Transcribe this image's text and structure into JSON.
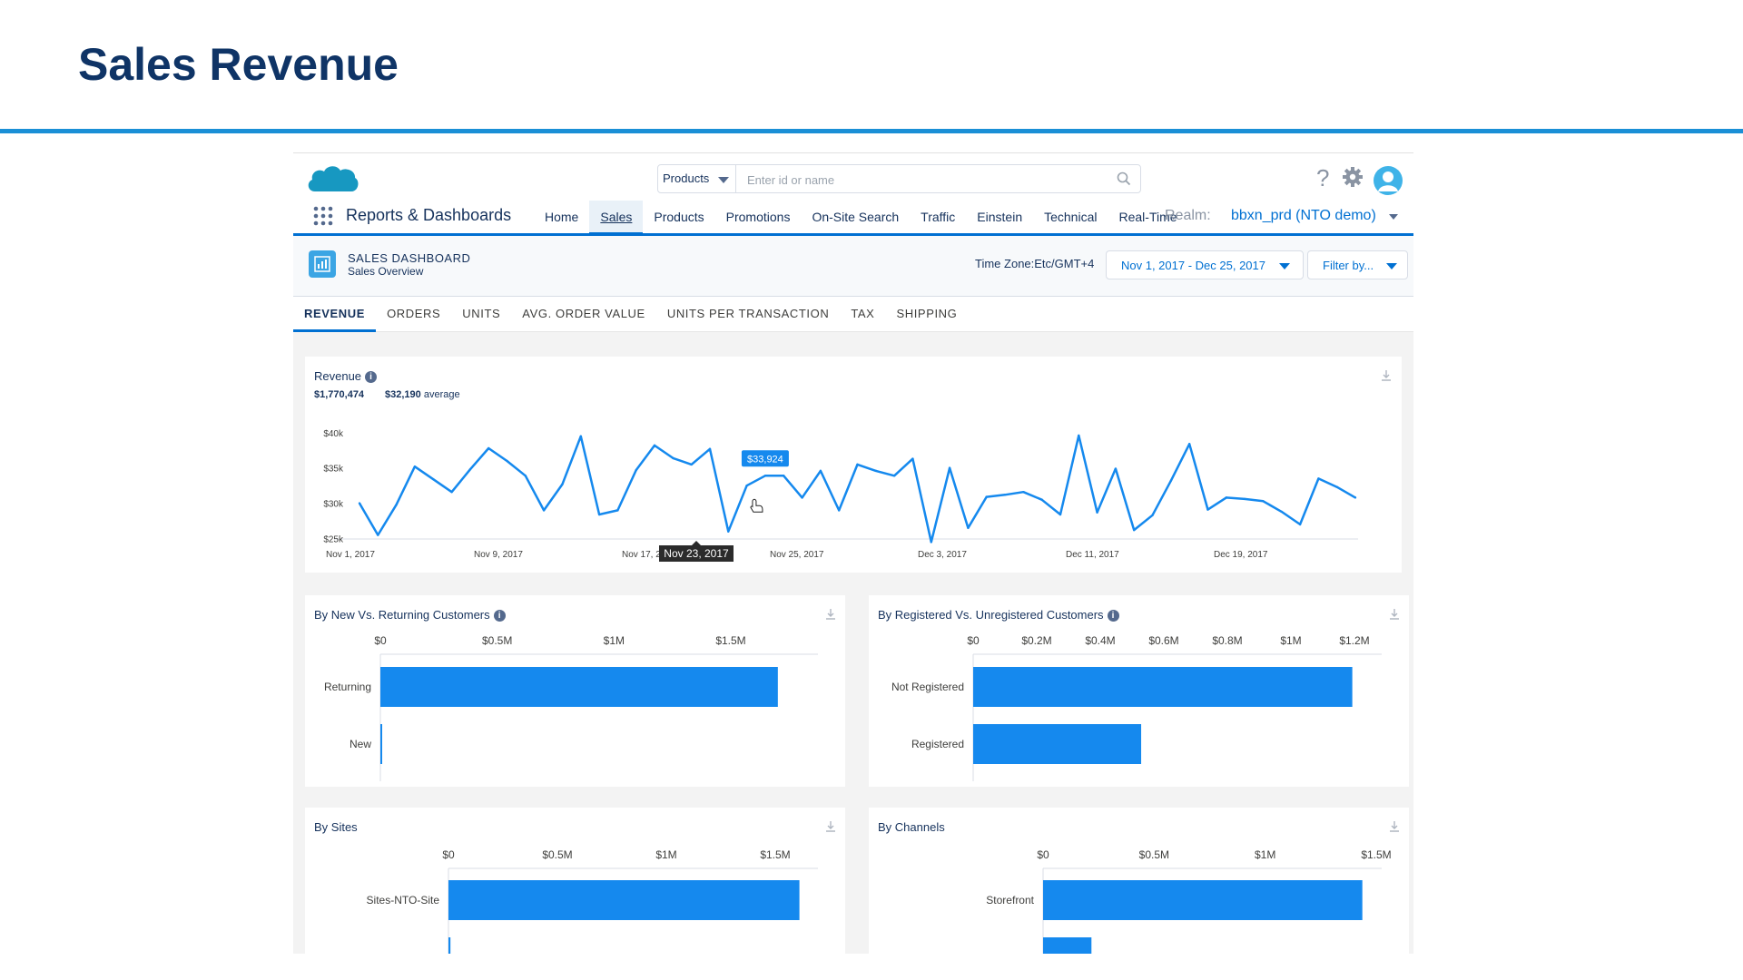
{
  "slide": {
    "title": "Sales Revenue"
  },
  "header": {
    "search_scope": "Products",
    "search_placeholder": "Enter id or name",
    "help_glyph": "?",
    "app_name": "Reports & Dashboards",
    "nav": [
      "Home",
      "Sales",
      "Products",
      "Promotions",
      "On-Site Search",
      "Traffic",
      "Einstein",
      "Technical",
      "Real-Time"
    ],
    "active_nav": "Sales",
    "realm_label": "Realm:",
    "realm_value": "bbxn_prd (NTO demo)"
  },
  "dashboard": {
    "title": "SALES DASHBOARD",
    "subtitle": "Sales Overview",
    "timezone": "Time Zone:Etc/GMT+4",
    "date_range": "Nov 1, 2017 - Dec 25, 2017",
    "filter_label": "Filter by..."
  },
  "tabs": [
    "REVENUE",
    "ORDERS",
    "UNITS",
    "AVG. ORDER VALUE",
    "UNITS PER TRANSACTION",
    "TAX",
    "SHIPPING"
  ],
  "active_tab": "REVENUE",
  "revenue_card": {
    "title": "Revenue",
    "total": "$1,770,474",
    "average_value": "$32,190",
    "average_label": "average",
    "tooltip_value": "$33,924",
    "tooltip_date": "Nov 23, 2017"
  },
  "colors": {
    "accent": "#0070d2",
    "bar": "#1589ee",
    "title": "#0f3466",
    "rule": "#1a8fd6"
  },
  "icons": [
    "salesforce-cloud-logo",
    "search-icon",
    "help-icon",
    "gear-icon",
    "avatar-icon",
    "app-grid-icon",
    "dashboard-icon",
    "info-icon",
    "download-icon",
    "cursor-hand-icon"
  ],
  "chart_data": [
    {
      "type": "line",
      "title": "Revenue",
      "x_tick_labels": [
        "Nov 1, 2017",
        "Nov 9, 2017",
        "Nov 17, 2017",
        "Nov 25, 2017",
        "Dec 3, 2017",
        "Dec 11, 2017",
        "Dec 19, 2017"
      ],
      "x_start": "2017-11-01",
      "y_tick_labels": [
        "$40k",
        "$35k",
        "$30k",
        "$25k"
      ],
      "ylim": [
        23000,
        40500
      ],
      "grid": false,
      "series": [
        {
          "values": [
            30000,
            25500,
            29800,
            35200,
            33400,
            31600,
            34800,
            37800,
            36000,
            33900,
            29000,
            32700,
            39500,
            28400,
            29000,
            34700,
            38200,
            36400,
            35500,
            37700,
            26000,
            32500,
            33900,
            33900,
            30800,
            34600,
            29000,
            35500,
            34600,
            33900,
            36300,
            24500,
            35000,
            26500,
            30900,
            31200,
            31600,
            30500,
            28400,
            39600,
            28700,
            34900,
            26200,
            28300,
            33200,
            38400,
            29100,
            30800,
            30600,
            30300,
            28800,
            27000,
            33500,
            32300,
            30800
          ]
        }
      ]
    },
    {
      "type": "bar",
      "title": "By New Vs. Returning Customers",
      "orientation": "horizontal",
      "categories": [
        "Returning",
        "New"
      ],
      "values": [
        1770000,
        5000
      ],
      "x_tick_labels": [
        "$0",
        "$0.5M",
        "$1M",
        "$1.5M"
      ],
      "xlim": [
        0,
        1900000
      ]
    },
    {
      "type": "bar",
      "title": "By Registered Vs. Unregistered Customers",
      "orientation": "horizontal",
      "categories": [
        "Not Registered",
        "Registered"
      ],
      "values": [
        1230000,
        545000
      ],
      "x_tick_labels": [
        "$0",
        "$0.2M",
        "$0.4M",
        "$0.6M",
        "$0.8M",
        "$1M",
        "$1.2M"
      ],
      "xlim": [
        0,
        1290000
      ]
    },
    {
      "type": "bar",
      "title": "By Sites",
      "orientation": "horizontal",
      "categories": [
        "Sites-NTO-Site",
        ""
      ],
      "values": [
        1770000,
        10000
      ],
      "x_tick_labels": [
        "$0",
        "$0.5M",
        "$1M",
        "$1.5M"
      ],
      "xlim": [
        0,
        1900000
      ]
    },
    {
      "type": "bar",
      "title": "By Channels",
      "orientation": "horizontal",
      "categories": [
        "Storefront",
        ""
      ],
      "values": [
        1650000,
        250000
      ],
      "x_tick_labels": [
        "$0",
        "$0.5M",
        "$1M",
        "$1.5M"
      ],
      "xlim": [
        0,
        1750000
      ]
    }
  ]
}
